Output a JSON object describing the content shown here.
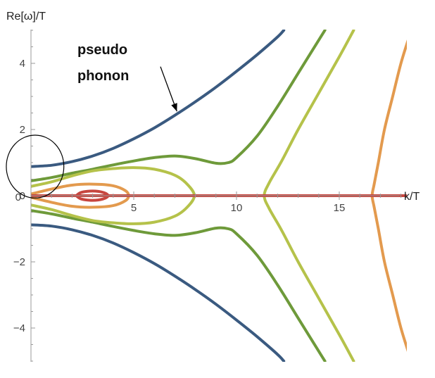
{
  "chart_data": {
    "type": "line",
    "title": "",
    "xlabel": "k/T",
    "ylabel": "Re[ω]/T",
    "xlim": [
      0,
      18
    ],
    "ylim": [
      -5,
      5
    ],
    "x_ticks": [
      5,
      10,
      15
    ],
    "y_ticks": [
      -4,
      -2,
      0,
      2,
      4
    ],
    "x_tick_labels": [
      "5",
      "10",
      "15"
    ],
    "y_tick_labels": [
      "−4",
      "−2",
      "0",
      "2",
      "4"
    ],
    "origin_label": "0",
    "grid": false,
    "annotation": {
      "lines": [
        "pseudo",
        "phonon"
      ],
      "arrow_from": [
        6.3,
        3.9
      ],
      "arrow_to": [
        7.1,
        2.55
      ]
    },
    "highlight_circle": {
      "center": [
        0.2,
        0.88
      ],
      "radius_x": 1.4,
      "radius_y": 0.95
    },
    "series": [
      {
        "color": "#3a5a80",
        "branches": [
          [
            [
              0.0,
              0.88
            ],
            [
              1.0,
              0.92
            ],
            [
              2.0,
              1.03
            ],
            [
              3.0,
              1.2
            ],
            [
              4.0,
              1.43
            ],
            [
              5.0,
              1.72
            ],
            [
              6.0,
              2.05
            ],
            [
              7.0,
              2.43
            ],
            [
              8.0,
              2.84
            ],
            [
              9.0,
              3.28
            ],
            [
              10.0,
              3.76
            ],
            [
              11.0,
              4.26
            ],
            [
              12.0,
              4.8
            ],
            [
              12.3,
              5.0
            ]
          ],
          [
            [
              0.0,
              -0.88
            ],
            [
              1.0,
              -0.92
            ],
            [
              2.0,
              -1.03
            ],
            [
              3.0,
              -1.2
            ],
            [
              4.0,
              -1.43
            ],
            [
              5.0,
              -1.72
            ],
            [
              6.0,
              -2.05
            ],
            [
              7.0,
              -2.43
            ],
            [
              8.0,
              -2.84
            ],
            [
              9.0,
              -3.28
            ],
            [
              10.0,
              -3.76
            ],
            [
              11.0,
              -4.26
            ],
            [
              12.0,
              -4.8
            ],
            [
              12.3,
              -5.0
            ]
          ]
        ]
      },
      {
        "color": "#6e9a3a",
        "branches": [
          [
            [
              0.0,
              0.45
            ],
            [
              1.0,
              0.55
            ],
            [
              2.0,
              0.68
            ],
            [
              3.0,
              0.8
            ],
            [
              4.0,
              0.93
            ],
            [
              5.0,
              1.05
            ],
            [
              6.0,
              1.15
            ],
            [
              7.0,
              1.2
            ],
            [
              8.0,
              1.12
            ],
            [
              9.0,
              0.98
            ],
            [
              9.6,
              1.0
            ],
            [
              10.0,
              1.15
            ],
            [
              11.0,
              1.8
            ],
            [
              12.0,
              2.7
            ],
            [
              13.0,
              3.7
            ],
            [
              14.0,
              4.7
            ],
            [
              14.3,
              5.0
            ]
          ],
          [
            [
              0.0,
              -0.45
            ],
            [
              1.0,
              -0.55
            ],
            [
              2.0,
              -0.68
            ],
            [
              3.0,
              -0.8
            ],
            [
              4.0,
              -0.93
            ],
            [
              5.0,
              -1.05
            ],
            [
              6.0,
              -1.15
            ],
            [
              7.0,
              -1.2
            ],
            [
              8.0,
              -1.12
            ],
            [
              9.0,
              -0.98
            ],
            [
              9.6,
              -1.0
            ],
            [
              10.0,
              -1.15
            ],
            [
              11.0,
              -1.8
            ],
            [
              12.0,
              -2.7
            ],
            [
              13.0,
              -3.7
            ],
            [
              14.0,
              -4.7
            ],
            [
              14.3,
              -5.0
            ]
          ]
        ]
      },
      {
        "color": "#b5c24a",
        "branches": [
          [
            [
              0.0,
              0.28
            ],
            [
              1.0,
              0.42
            ],
            [
              2.0,
              0.6
            ],
            [
              3.0,
              0.75
            ],
            [
              4.0,
              0.82
            ],
            [
              5.0,
              0.85
            ],
            [
              6.0,
              0.8
            ],
            [
              7.0,
              0.62
            ],
            [
              7.6,
              0.35
            ],
            [
              7.95,
              0.0
            ],
            [
              7.6,
              -0.35
            ],
            [
              7.0,
              -0.62
            ],
            [
              6.0,
              -0.8
            ],
            [
              5.0,
              -0.85
            ],
            [
              4.0,
              -0.82
            ],
            [
              3.0,
              -0.75
            ],
            [
              2.0,
              -0.6
            ],
            [
              1.0,
              -0.42
            ],
            [
              0.0,
              -0.28
            ]
          ],
          [
            [
              15.7,
              5.0
            ],
            [
              15.0,
              4.2
            ],
            [
              14.0,
              3.1
            ],
            [
              13.0,
              2.0
            ],
            [
              12.2,
              1.05
            ],
            [
              11.6,
              0.4
            ],
            [
              11.35,
              0.0
            ],
            [
              11.6,
              -0.4
            ],
            [
              12.2,
              -1.05
            ],
            [
              13.0,
              -2.0
            ],
            [
              14.0,
              -3.1
            ],
            [
              15.0,
              -4.2
            ],
            [
              15.7,
              -5.0
            ]
          ]
        ]
      },
      {
        "color": "#e39a4e",
        "branches": [
          [
            [
              0.0,
              0.05
            ],
            [
              1.0,
              0.2
            ],
            [
              2.0,
              0.32
            ],
            [
              3.0,
              0.35
            ],
            [
              4.0,
              0.3
            ],
            [
              4.6,
              0.15
            ],
            [
              4.75,
              0.0
            ],
            [
              4.6,
              -0.15
            ],
            [
              4.0,
              -0.3
            ],
            [
              3.0,
              -0.35
            ],
            [
              2.0,
              -0.32
            ],
            [
              1.0,
              -0.2
            ],
            [
              0.0,
              -0.05
            ]
          ],
          [
            [
              18.4,
              4.8
            ],
            [
              18.0,
              4.0
            ],
            [
              17.6,
              3.0
            ],
            [
              17.2,
              2.0
            ],
            [
              16.9,
              1.0
            ],
            [
              16.7,
              0.35
            ],
            [
              16.6,
              0.0
            ],
            [
              16.7,
              -0.35
            ],
            [
              16.9,
              -1.0
            ],
            [
              17.2,
              -2.0
            ],
            [
              17.6,
              -3.0
            ],
            [
              18.0,
              -4.0
            ],
            [
              18.4,
              -4.8
            ]
          ]
        ]
      },
      {
        "color": "#c7463f",
        "branches": [
          [
            [
              2.2,
              0.0
            ],
            [
              2.45,
              0.1
            ],
            [
              3.0,
              0.14
            ],
            [
              3.5,
              0.1
            ],
            [
              3.75,
              0.0
            ],
            [
              3.5,
              -0.1
            ],
            [
              3.0,
              -0.14
            ],
            [
              2.45,
              -0.1
            ],
            [
              2.2,
              0.0
            ]
          ],
          [
            [
              0.0,
              0.0
            ],
            [
              18.5,
              0.0
            ]
          ]
        ]
      }
    ]
  }
}
